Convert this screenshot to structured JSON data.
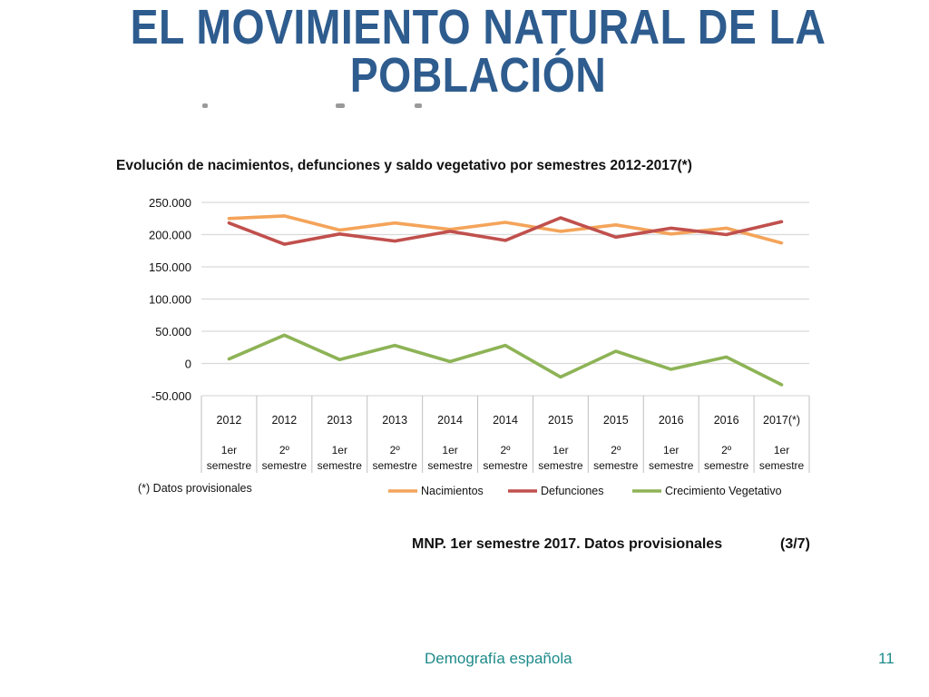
{
  "slide": {
    "title_line1": "EL MOVIMIENTO NATURAL DE LA",
    "title_line2": "POBLACIÓN",
    "footer_title": "Demografía española",
    "page_number": "11"
  },
  "colors": {
    "title": "#2e5c8e",
    "nacimientos": "#f4a45a",
    "defunciones": "#c0504d",
    "crecimiento": "#8db356",
    "grid": "#d9d9d9",
    "footer": "#1f8a8a"
  },
  "chart_data": {
    "type": "line",
    "title": "Evolución de nacimientos, defunciones y saldo vegetativo por semestres 2012-2017(*)",
    "categories": [
      {
        "year": "2012",
        "sem1": "1er",
        "sem2": "semestre"
      },
      {
        "year": "2012",
        "sem1": "2º",
        "sem2": "semestre"
      },
      {
        "year": "2013",
        "sem1": "1er",
        "sem2": "semestre"
      },
      {
        "year": "2013",
        "sem1": "2º",
        "sem2": "semestre"
      },
      {
        "year": "2014",
        "sem1": "1er",
        "sem2": "semestre"
      },
      {
        "year": "2014",
        "sem1": "2º",
        "sem2": "semestre"
      },
      {
        "year": "2015",
        "sem1": "1er",
        "sem2": "semestre"
      },
      {
        "year": "2015",
        "sem1": "2º",
        "sem2": "semestre"
      },
      {
        "year": "2016",
        "sem1": "1er",
        "sem2": "semestre"
      },
      {
        "year": "2016",
        "sem1": "2º",
        "sem2": "semestre"
      },
      {
        "year": "2017(*)",
        "sem1": "1er",
        "sem2": "semestre"
      }
    ],
    "ylim": [
      -50000,
      250000
    ],
    "yticks": [
      250000,
      200000,
      150000,
      100000,
      50000,
      0,
      -50000
    ],
    "ytick_labels": [
      "250.000",
      "200.000",
      "150.000",
      "100.000",
      "50.000",
      "0",
      "-50.000"
    ],
    "grid": true,
    "legend_position": "bottom",
    "series": [
      {
        "name": "Nacimientos",
        "color": "#f4a45a",
        "values": [
          225000,
          229000,
          207000,
          218000,
          208000,
          219000,
          205000,
          215000,
          201000,
          210000,
          187000
        ]
      },
      {
        "name": "Defunciones",
        "color": "#c0504d",
        "values": [
          218000,
          185000,
          201000,
          190000,
          205000,
          191000,
          226000,
          196000,
          210000,
          200000,
          220000
        ]
      },
      {
        "name": "Crecimiento Vegetativo",
        "color": "#8db356",
        "values": [
          7000,
          44000,
          6000,
          28000,
          3000,
          28000,
          -21000,
          19000,
          -9000,
          10000,
          -33000
        ]
      }
    ],
    "note": "(*) Datos provisionales",
    "source": "MNP. 1er semestre 2017. Datos provisionales",
    "source_page": "(3/7)"
  }
}
